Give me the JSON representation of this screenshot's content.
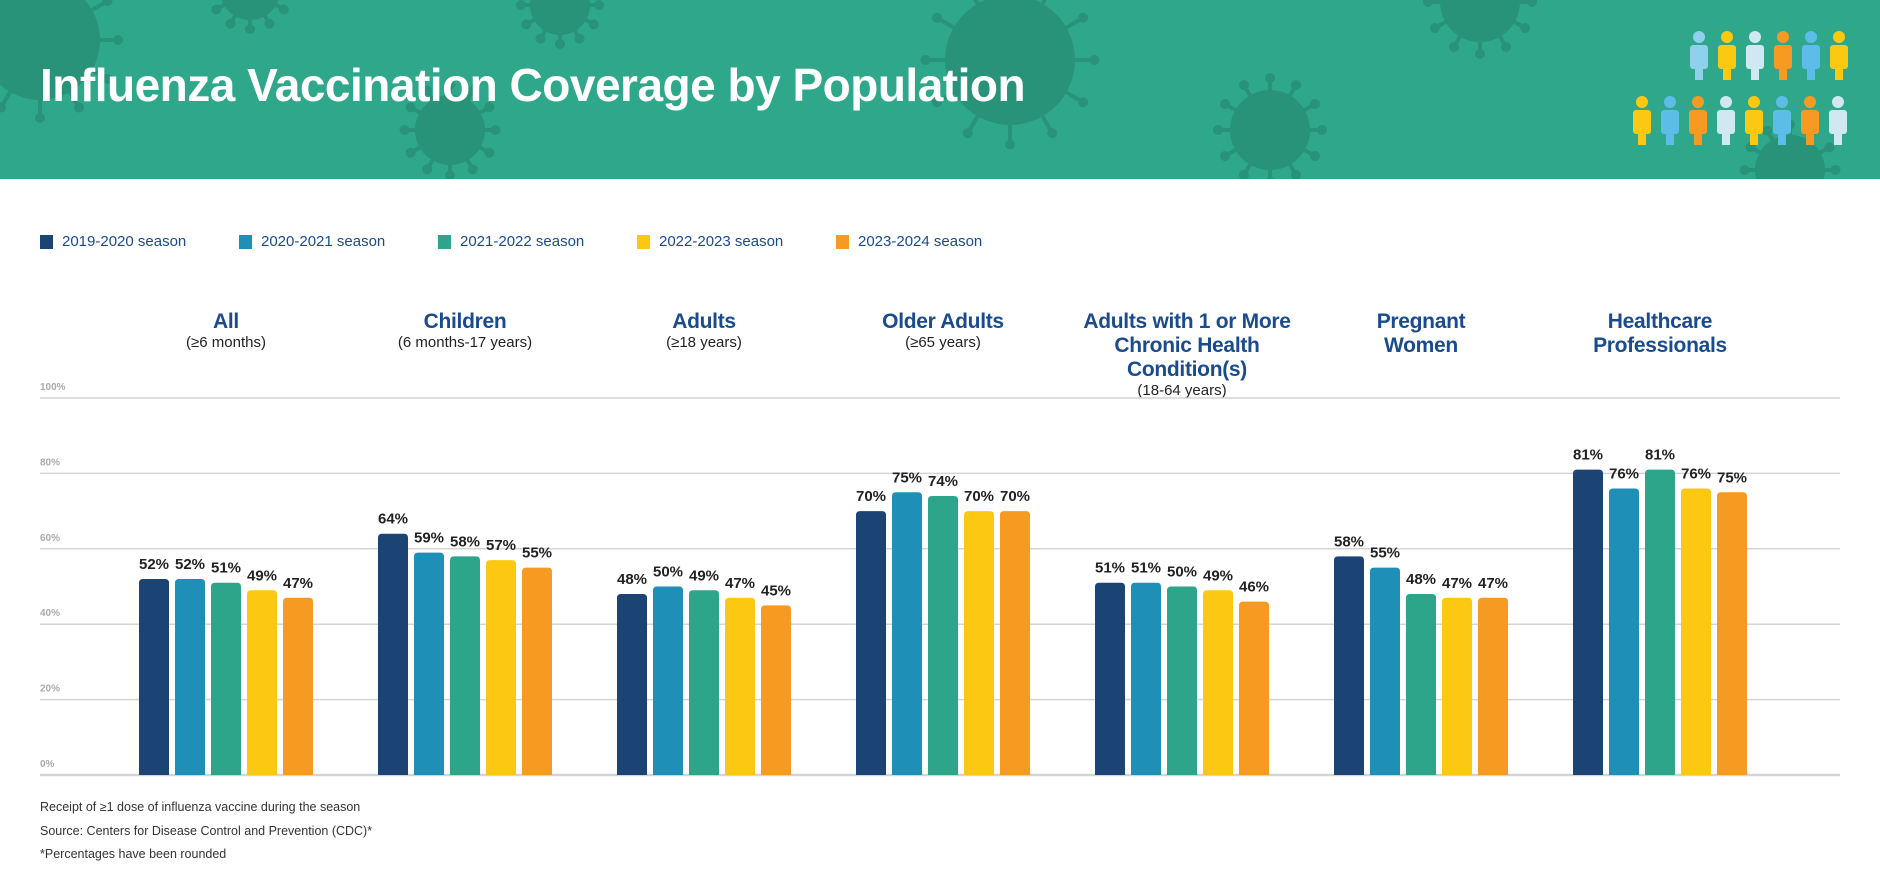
{
  "header": {
    "title": "Influenza Vaccination Coverage by Population"
  },
  "colors": {
    "header_bg": "#2fa78a",
    "text_blue": "#1a4b8c"
  },
  "chart_data": {
    "type": "bar",
    "title": "Influenza Vaccination Coverage by Population",
    "categories": [
      {
        "title": "All",
        "subtitle": "(≥6 months)"
      },
      {
        "title": "Children",
        "subtitle": "(6 months-17 years)"
      },
      {
        "title": "Adults",
        "subtitle": "(≥18 years)"
      },
      {
        "title": "Older Adults",
        "subtitle": "(≥65 years)"
      },
      {
        "title": "Adults with 1 or More Chronic Health Condition(s)",
        "subtitle": "(18-64 years)"
      },
      {
        "title": "Pregnant Women",
        "subtitle": ""
      },
      {
        "title": "Healthcare Professionals",
        "subtitle": ""
      }
    ],
    "series": [
      {
        "name": "2019-2020 season",
        "color": "#1b4373",
        "values": [
          52,
          64,
          48,
          70,
          51,
          58,
          81
        ]
      },
      {
        "name": "2020-2021 season",
        "color": "#1e8fb7",
        "values": [
          52,
          59,
          50,
          75,
          51,
          55,
          76
        ]
      },
      {
        "name": "2021-2022 season",
        "color": "#2ca58a",
        "values": [
          51,
          58,
          49,
          74,
          50,
          48,
          81
        ]
      },
      {
        "name": "2022-2023 season",
        "color": "#fdc811",
        "values": [
          49,
          57,
          47,
          70,
          49,
          47,
          76
        ]
      },
      {
        "name": "2023-2024 season",
        "color": "#f79a22",
        "values": [
          47,
          55,
          45,
          70,
          46,
          47,
          75
        ]
      }
    ],
    "yticks": [
      "0%",
      "20%",
      "40%",
      "60%",
      "80%",
      "100%"
    ],
    "ylim": [
      0,
      100
    ],
    "grid": true,
    "legend_position": "top-left",
    "data_label_suffix": "%"
  },
  "footnotes": [
    "Receipt of ≥1 dose of influenza vaccine during the season",
    "Source: Centers for Disease Control and Prevention (CDC)*",
    "*Percentages have been rounded"
  ]
}
